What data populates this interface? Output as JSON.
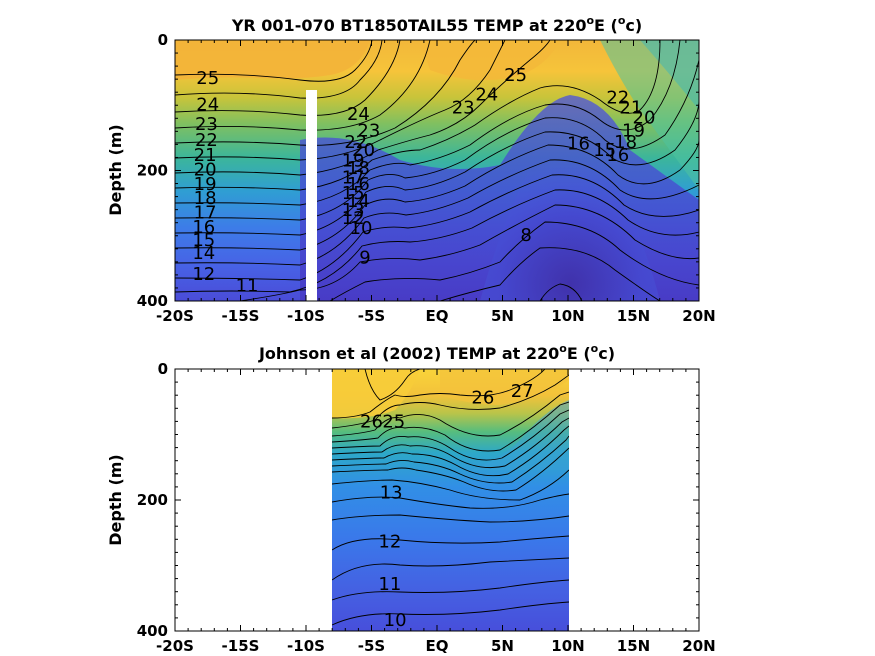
{
  "chart_data": [
    {
      "type": "heatmap",
      "title_main": "YR 001-070 BT1850TAIL55 TEMP at 220",
      "title_deg": "o",
      "title_unit_pre": "E (",
      "title_unit_sup": "o",
      "title_unit_post": "c)",
      "ylabel": "Depth (m)",
      "xticks": [
        "-20S",
        "-15S",
        "-10S",
        "-5S",
        "EQ",
        "5N",
        "10N",
        "15N",
        "20N"
      ],
      "yticks": [
        "0",
        "200",
        "400"
      ],
      "xlim": [
        -20,
        20
      ],
      "ylim": [
        0,
        400
      ],
      "data_gap": {
        "x_range": [
          -10.3,
          -9.6
        ],
        "depth_range": [
          80,
          400
        ]
      },
      "contour_labels": [
        {
          "text": "25",
          "x": -17.5,
          "y": 60
        },
        {
          "text": "24",
          "x": -17.5,
          "y": 100
        },
        {
          "text": "23",
          "x": -17.6,
          "y": 130
        },
        {
          "text": "22",
          "x": -17.6,
          "y": 155
        },
        {
          "text": "21",
          "x": -17.7,
          "y": 178
        },
        {
          "text": "20",
          "x": -17.7,
          "y": 200
        },
        {
          "text": "19",
          "x": -17.7,
          "y": 222
        },
        {
          "text": "18",
          "x": -17.7,
          "y": 244
        },
        {
          "text": "17",
          "x": -17.7,
          "y": 266
        },
        {
          "text": "16",
          "x": -17.8,
          "y": 288
        },
        {
          "text": "15",
          "x": -17.8,
          "y": 308
        },
        {
          "text": "14",
          "x": -17.8,
          "y": 328
        },
        {
          "text": "12",
          "x": -17.8,
          "y": 360
        },
        {
          "text": "11",
          "x": -14.5,
          "y": 378
        },
        {
          "text": "24",
          "x": -6.0,
          "y": 115
        },
        {
          "text": "23",
          "x": -5.2,
          "y": 140
        },
        {
          "text": "22",
          "x": -6.2,
          "y": 158
        },
        {
          "text": "20",
          "x": -5.6,
          "y": 170
        },
        {
          "text": "19",
          "x": -6.4,
          "y": 186
        },
        {
          "text": "18",
          "x": -6.0,
          "y": 198
        },
        {
          "text": "17",
          "x": -6.4,
          "y": 212
        },
        {
          "text": "16",
          "x": -6.0,
          "y": 222
        },
        {
          "text": "15",
          "x": -6.4,
          "y": 236
        },
        {
          "text": "14",
          "x": -6.0,
          "y": 248
        },
        {
          "text": "13",
          "x": -6.4,
          "y": 262
        },
        {
          "text": "12",
          "x": -6.4,
          "y": 274
        },
        {
          "text": "10",
          "x": -5.8,
          "y": 290
        },
        {
          "text": "9",
          "x": -5.5,
          "y": 335
        },
        {
          "text": "8",
          "x": 6.8,
          "y": 300
        },
        {
          "text": "23",
          "x": 2.0,
          "y": 105
        },
        {
          "text": "24",
          "x": 3.8,
          "y": 85
        },
        {
          "text": "25",
          "x": 6.0,
          "y": 55
        },
        {
          "text": "22",
          "x": 13.8,
          "y": 90
        },
        {
          "text": "21",
          "x": 14.8,
          "y": 105
        },
        {
          "text": "20",
          "x": 15.8,
          "y": 120
        },
        {
          "text": "19",
          "x": 15.0,
          "y": 140
        },
        {
          "text": "18",
          "x": 14.4,
          "y": 158
        },
        {
          "text": "16",
          "x": 10.8,
          "y": 160
        },
        {
          "text": "15",
          "x": 12.8,
          "y": 170
        },
        {
          "text": "16",
          "x": 13.8,
          "y": 178
        }
      ]
    },
    {
      "type": "heatmap",
      "title_main": "Johnson et al (2002) TEMP at 220",
      "title_deg": "o",
      "title_unit_pre": "E (",
      "title_unit_sup": "o",
      "title_unit_post": "c)",
      "ylabel": "Depth (m)",
      "xticks": [
        "-20S",
        "-15S",
        "-10S",
        "-5S",
        "EQ",
        "5N",
        "10N",
        "15N",
        "20N"
      ],
      "yticks": [
        "0",
        "200",
        "400"
      ],
      "xlim": [
        -20,
        20
      ],
      "ylim": [
        0,
        400
      ],
      "data_extent": {
        "x_range": [
          -8,
          10
        ],
        "depth_range": [
          0,
          400
        ]
      },
      "contour_labels": [
        {
          "text": "27",
          "x": 6.5,
          "y": 35
        },
        {
          "text": "26",
          "x": 3.5,
          "y": 45
        },
        {
          "text": "26",
          "x": -5.0,
          "y": 82
        },
        {
          "text": "25",
          "x": -3.3,
          "y": 82
        },
        {
          "text": "13",
          "x": -3.5,
          "y": 190
        },
        {
          "text": "12",
          "x": -3.6,
          "y": 265
        },
        {
          "text": "11",
          "x": -3.6,
          "y": 330
        },
        {
          "text": "10",
          "x": -3.2,
          "y": 385
        }
      ]
    }
  ]
}
